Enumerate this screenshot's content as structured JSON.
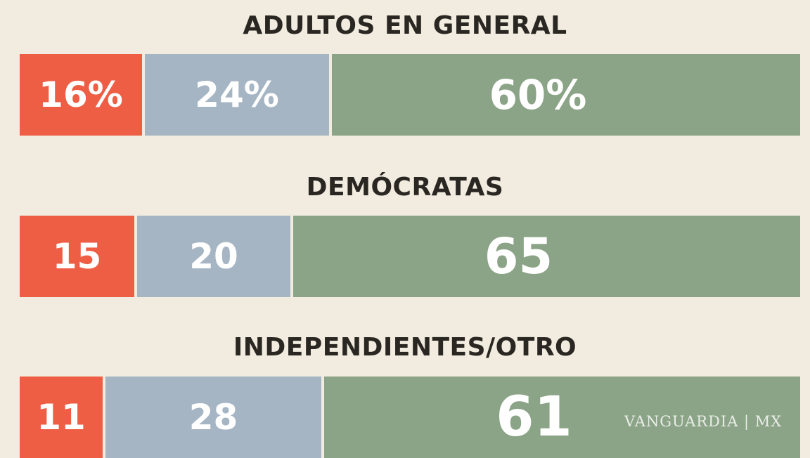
{
  "chart_data": {
    "type": "bar",
    "orientation": "horizontal-stacked",
    "categories": [
      "ADULTOS EN GENERAL",
      "DEMÓCRATAS",
      "INDEPENDIENTES/OTRO"
    ],
    "series": [
      {
        "values": [
          16,
          15,
          11
        ],
        "labels": [
          "16%",
          "15",
          "11"
        ]
      },
      {
        "values": [
          24,
          20,
          28
        ],
        "labels": [
          "24%",
          "20",
          "28"
        ]
      },
      {
        "values": [
          60,
          65,
          61
        ],
        "labels": [
          "60%",
          "65",
          "61"
        ]
      }
    ],
    "colors": [
      "#ee5e45",
      "#a6b5c4",
      "#8ba386"
    ],
    "unit": "%",
    "xlim": [
      0,
      100
    ],
    "grid": false,
    "legend": "none"
  },
  "watermark": "VANGUARDIA | MX"
}
